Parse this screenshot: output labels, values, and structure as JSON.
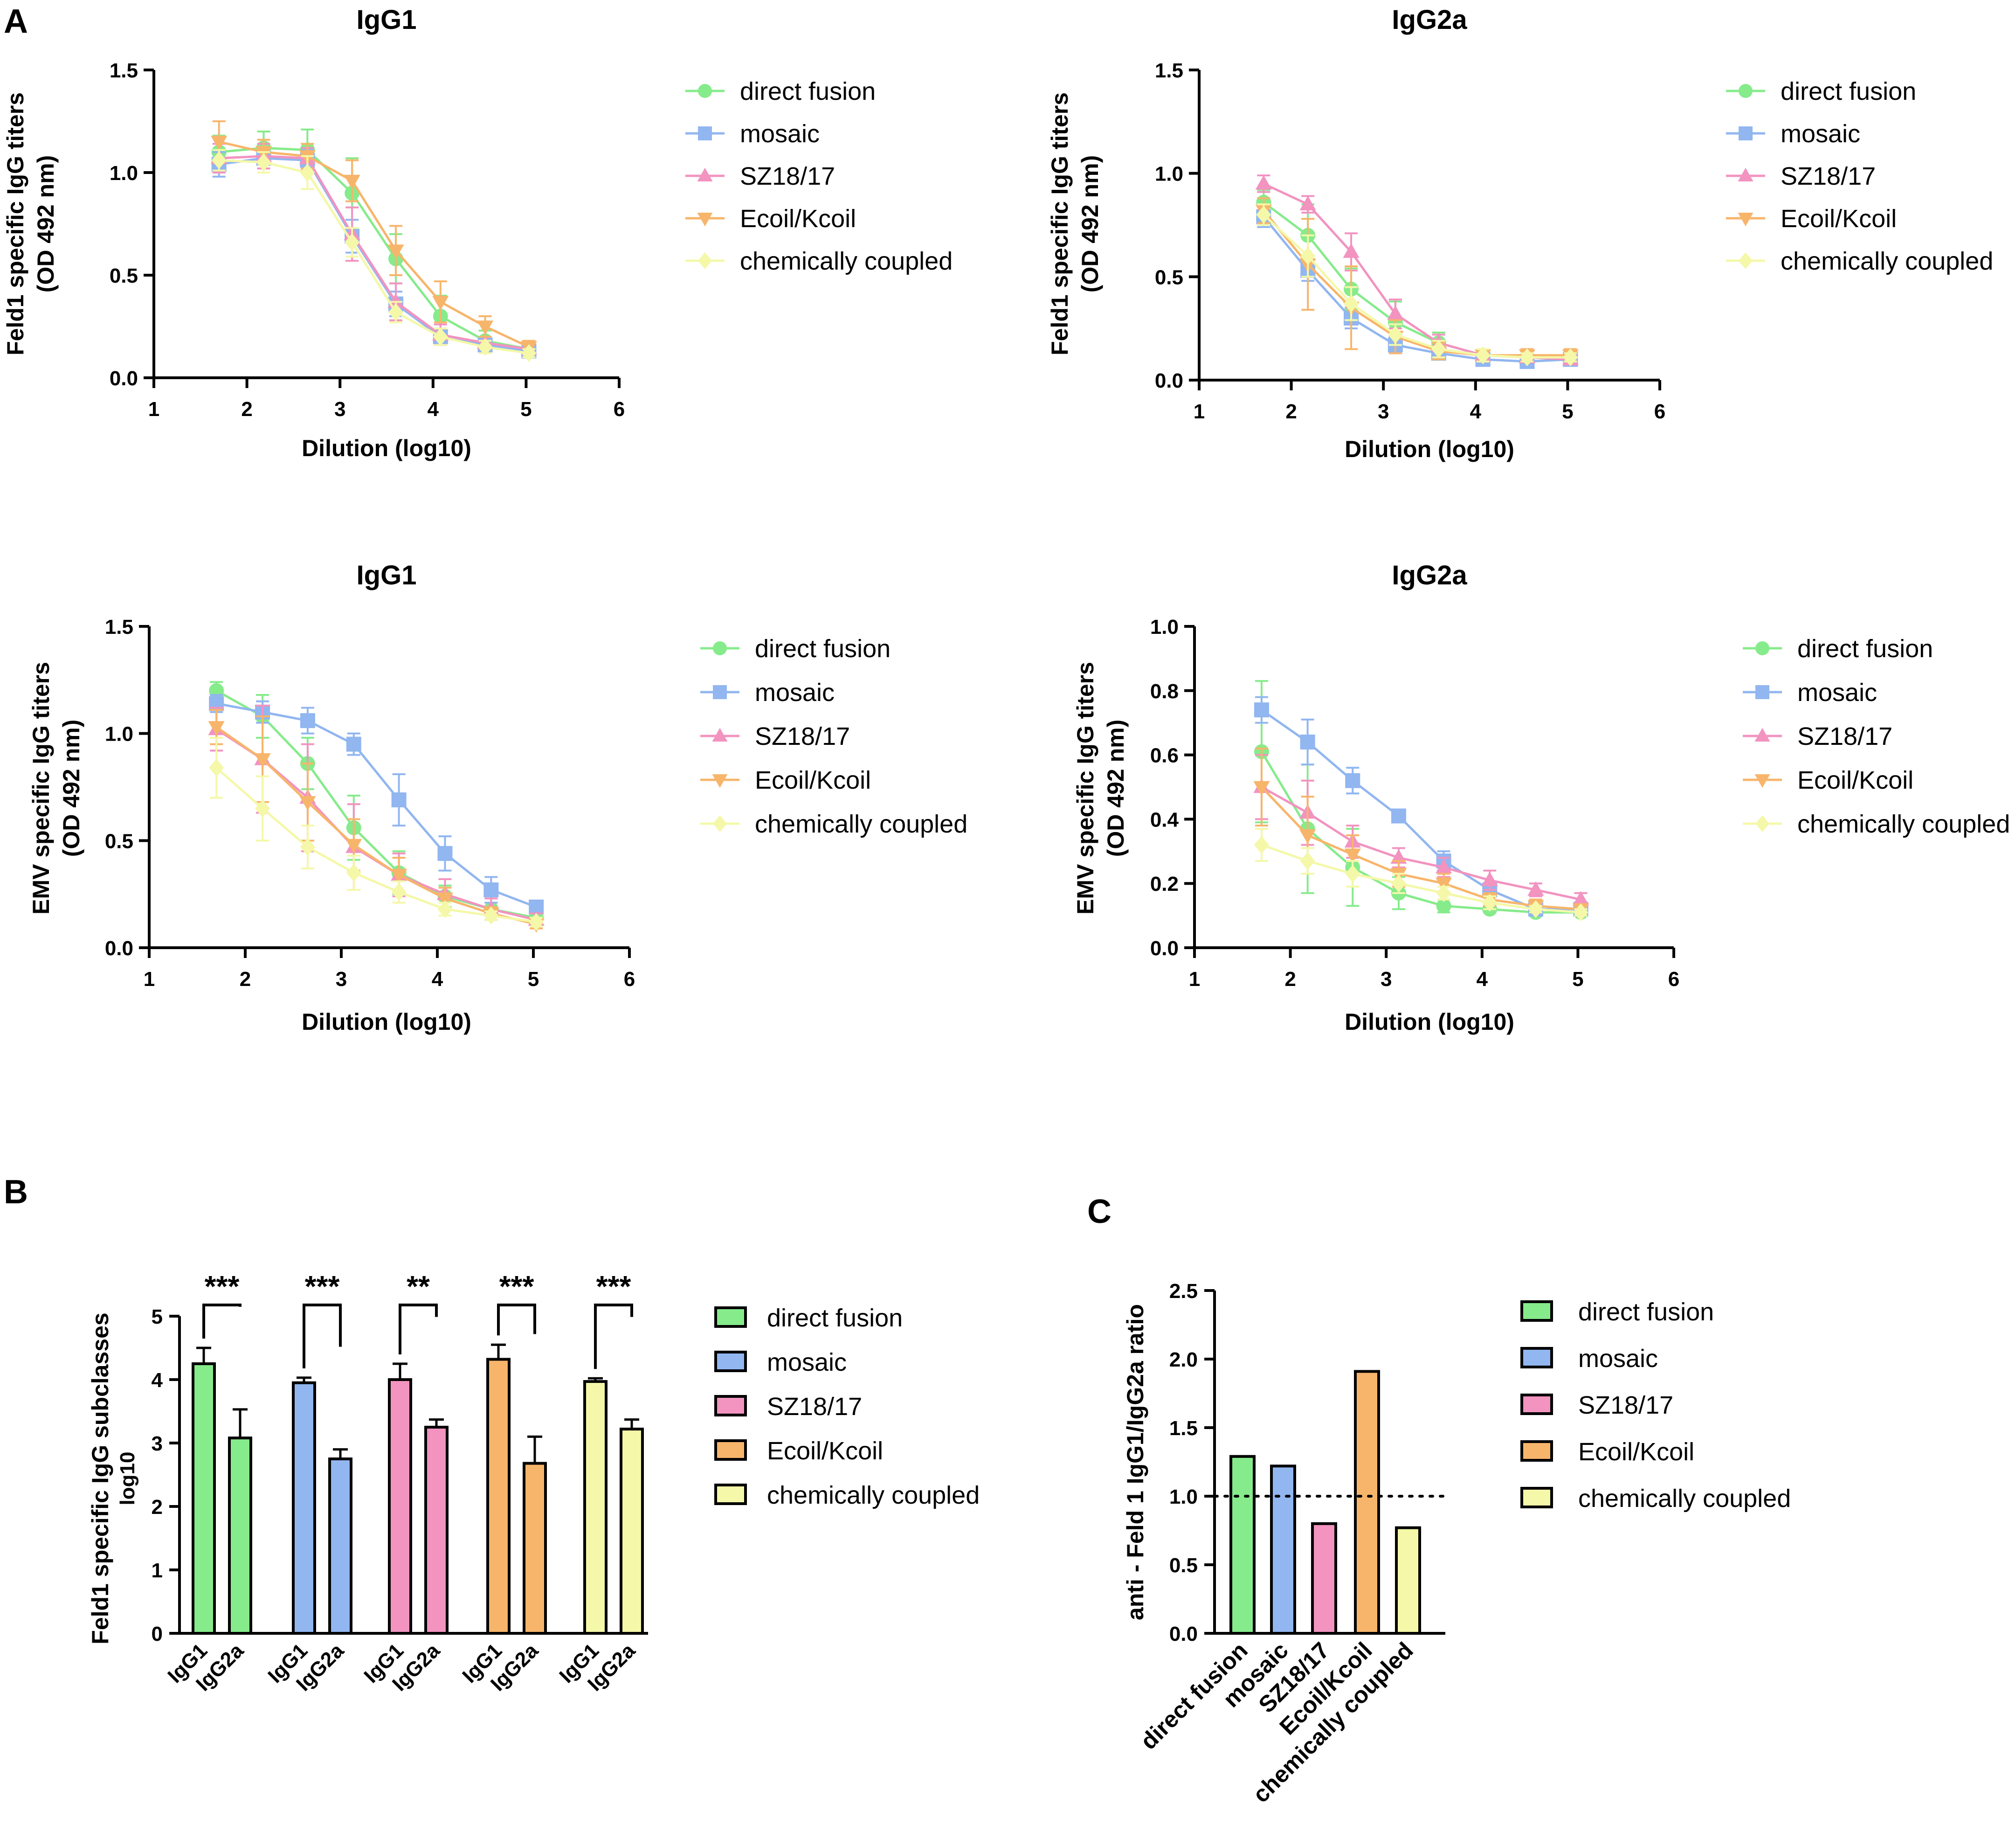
{
  "figure": {
    "panel_labels": {
      "a": "A",
      "b": "B",
      "c": "C"
    },
    "series_colors": {
      "direct fusion": "#86EB8B",
      "mosaic": "#91B6F0",
      "SZ18/17": "#F293C0",
      "Ecoil/Kcoil": "#F7B56B",
      "chemically coupled": "#F4F8A8"
    }
  },
  "chart_data": [
    {
      "id": "A1",
      "type": "line",
      "title": "IgG1",
      "xlabel": "Dilution (log10)",
      "ylabel": [
        "Feld1 specific IgG titers",
        "(OD 492 nm)"
      ],
      "xlim": [
        1,
        6
      ],
      "ylim": [
        0,
        1.5
      ],
      "xticks": [
        "1",
        "2",
        "3",
        "4",
        "5",
        "6"
      ],
      "yticks": [
        "0.0",
        "0.5",
        "1.0",
        "1.5"
      ],
      "x": [
        1.7,
        2.18,
        2.65,
        3.13,
        3.6,
        4.08,
        4.56,
        5.03
      ],
      "series": [
        {
          "name": "direct fusion",
          "marker": "circle",
          "values": [
            1.1,
            1.12,
            1.11,
            0.9,
            0.58,
            0.3,
            0.18,
            0.14
          ],
          "err": [
            0.08,
            0.08,
            0.1,
            0.17,
            0.12,
            0.1,
            0.05,
            0.03
          ]
        },
        {
          "name": "mosaic",
          "marker": "square",
          "values": [
            1.04,
            1.07,
            1.06,
            0.69,
            0.36,
            0.2,
            0.16,
            0.13
          ],
          "err": [
            0.06,
            0.05,
            0.05,
            0.08,
            0.06,
            0.04,
            0.03,
            0.02
          ]
        },
        {
          "name": "SZ18/17",
          "marker": "triangle-up",
          "values": [
            1.07,
            1.08,
            1.07,
            0.7,
            0.37,
            0.21,
            0.17,
            0.14
          ],
          "err": [
            0.07,
            0.06,
            0.05,
            0.13,
            0.09,
            0.05,
            0.03,
            0.02
          ]
        },
        {
          "name": "Ecoil/Kcoil",
          "marker": "triangle-down",
          "values": [
            1.15,
            1.1,
            1.08,
            0.96,
            0.62,
            0.37,
            0.25,
            0.15
          ],
          "err": [
            0.1,
            0.06,
            0.06,
            0.1,
            0.12,
            0.1,
            0.05,
            0.03
          ]
        },
        {
          "name": "chemically coupled",
          "marker": "diamond",
          "values": [
            1.06,
            1.05,
            1.0,
            0.66,
            0.32,
            0.2,
            0.15,
            0.12
          ],
          "err": [
            0.05,
            0.05,
            0.08,
            0.07,
            0.05,
            0.04,
            0.03,
            0.02
          ]
        }
      ]
    },
    {
      "id": "A2",
      "type": "line",
      "title": "IgG2a",
      "xlabel": "Dilution (log10)",
      "ylabel": [
        "Feld1 specific IgG titers",
        "(OD 492 nm)"
      ],
      "xlim": [
        1,
        6
      ],
      "ylim": [
        0,
        1.5
      ],
      "xticks": [
        "1",
        "2",
        "3",
        "4",
        "5",
        "6"
      ],
      "yticks": [
        "0.0",
        "0.5",
        "1.0",
        "1.5"
      ],
      "x": [
        1.7,
        2.18,
        2.65,
        3.13,
        3.6,
        4.08,
        4.56,
        5.03
      ],
      "series": [
        {
          "name": "direct fusion",
          "marker": "circle",
          "values": [
            0.86,
            0.7,
            0.44,
            0.28,
            0.18,
            0.12,
            0.11,
            0.1
          ],
          "err": [
            0.06,
            0.15,
            0.1,
            0.1,
            0.05,
            0.03,
            0.02,
            0.02
          ]
        },
        {
          "name": "mosaic",
          "marker": "square",
          "values": [
            0.79,
            0.53,
            0.3,
            0.17,
            0.13,
            0.1,
            0.09,
            0.1
          ],
          "err": [
            0.05,
            0.05,
            0.05,
            0.04,
            0.03,
            0.02,
            0.02,
            0.02
          ]
        },
        {
          "name": "SZ18/17",
          "marker": "triangle-up",
          "values": [
            0.95,
            0.85,
            0.62,
            0.32,
            0.18,
            0.12,
            0.11,
            0.1
          ],
          "err": [
            0.04,
            0.04,
            0.09,
            0.07,
            0.04,
            0.03,
            0.02,
            0.02
          ]
        },
        {
          "name": "Ecoil/Kcoil",
          "marker": "triangle-down",
          "values": [
            0.82,
            0.56,
            0.35,
            0.21,
            0.14,
            0.12,
            0.12,
            0.12
          ],
          "err": [
            0.06,
            0.22,
            0.2,
            0.08,
            0.04,
            0.03,
            0.03,
            0.03
          ]
        },
        {
          "name": "chemically coupled",
          "marker": "diamond",
          "values": [
            0.8,
            0.6,
            0.37,
            0.22,
            0.15,
            0.12,
            0.11,
            0.11
          ],
          "err": [
            0.05,
            0.1,
            0.08,
            0.05,
            0.04,
            0.03,
            0.02,
            0.02
          ]
        }
      ]
    },
    {
      "id": "A3",
      "type": "line",
      "title": "IgG1",
      "xlabel": "Dilution (log10)",
      "ylabel": [
        "EMV specific IgG titers",
        "(OD 492 nm)"
      ],
      "xlim": [
        1,
        6
      ],
      "ylim": [
        0,
        1.5
      ],
      "xticks": [
        "1",
        "2",
        "3",
        "4",
        "5",
        "6"
      ],
      "yticks": [
        "0.0",
        "0.5",
        "1.0",
        "1.5"
      ],
      "x": [
        1.7,
        2.18,
        2.65,
        3.13,
        3.6,
        4.08,
        4.56,
        5.03
      ],
      "series": [
        {
          "name": "direct fusion",
          "marker": "circle",
          "values": [
            1.2,
            1.08,
            0.86,
            0.56,
            0.35,
            0.24,
            0.18,
            0.14
          ],
          "err": [
            0.04,
            0.1,
            0.12,
            0.15,
            0.1,
            0.05,
            0.03,
            0.02
          ]
        },
        {
          "name": "mosaic",
          "marker": "square",
          "values": [
            1.14,
            1.1,
            1.06,
            0.95,
            0.69,
            0.44,
            0.27,
            0.19
          ],
          "err": [
            0.04,
            0.05,
            0.06,
            0.05,
            0.12,
            0.08,
            0.06,
            0.03
          ]
        },
        {
          "name": "SZ18/17",
          "marker": "triangle-up",
          "values": [
            1.02,
            0.88,
            0.7,
            0.47,
            0.34,
            0.25,
            0.18,
            0.13
          ],
          "err": [
            0.1,
            0.25,
            0.25,
            0.2,
            0.1,
            0.07,
            0.05,
            0.03
          ]
        },
        {
          "name": "Ecoil/Kcoil",
          "marker": "triangle-down",
          "values": [
            1.03,
            0.88,
            0.68,
            0.48,
            0.34,
            0.23,
            0.16,
            0.11
          ],
          "err": [
            0.08,
            0.2,
            0.18,
            0.12,
            0.08,
            0.05,
            0.03,
            0.02
          ]
        },
        {
          "name": "chemically coupled",
          "marker": "diamond",
          "values": [
            0.84,
            0.65,
            0.47,
            0.35,
            0.26,
            0.18,
            0.15,
            0.12
          ],
          "err": [
            0.14,
            0.15,
            0.1,
            0.08,
            0.05,
            0.03,
            0.02,
            0.02
          ]
        }
      ]
    },
    {
      "id": "A4",
      "type": "line",
      "title": "IgG2a",
      "xlabel": "Dilution (log10)",
      "ylabel": [
        "EMV specific IgG titers",
        "(OD 492 nm)"
      ],
      "xlim": [
        1,
        6
      ],
      "ylim": [
        0,
        1.0
      ],
      "xticks": [
        "1",
        "2",
        "3",
        "4",
        "5",
        "6"
      ],
      "yticks": [
        "0.0",
        "0.2",
        "0.4",
        "0.6",
        "0.8",
        "1.0"
      ],
      "x": [
        1.7,
        2.18,
        2.65,
        3.13,
        3.6,
        4.08,
        4.56,
        5.03
      ],
      "series": [
        {
          "name": "direct fusion",
          "marker": "circle",
          "values": [
            0.61,
            0.37,
            0.25,
            0.17,
            0.13,
            0.12,
            0.11,
            0.11
          ],
          "err": [
            0.22,
            0.2,
            0.12,
            0.05,
            0.02,
            0.01,
            0.01,
            0.01
          ]
        },
        {
          "name": "mosaic",
          "marker": "square",
          "values": [
            0.74,
            0.64,
            0.52,
            0.41,
            0.27,
            0.18,
            0.12,
            0.12
          ],
          "err": [
            0.04,
            0.07,
            0.04,
            0.02,
            0.03,
            0.02,
            0.01,
            0.01
          ]
        },
        {
          "name": "SZ18/17",
          "marker": "triangle-up",
          "values": [
            0.5,
            0.42,
            0.33,
            0.28,
            0.25,
            0.21,
            0.18,
            0.15
          ],
          "err": [
            0.1,
            0.1,
            0.05,
            0.03,
            0.03,
            0.03,
            0.02,
            0.02
          ]
        },
        {
          "name": "Ecoil/Kcoil",
          "marker": "triangle-down",
          "values": [
            0.5,
            0.35,
            0.29,
            0.23,
            0.2,
            0.15,
            0.13,
            0.12
          ],
          "err": [
            0.12,
            0.12,
            0.06,
            0.04,
            0.03,
            0.02,
            0.02,
            0.01
          ]
        },
        {
          "name": "chemically coupled",
          "marker": "diamond",
          "values": [
            0.32,
            0.27,
            0.23,
            0.2,
            0.17,
            0.14,
            0.12,
            0.11
          ],
          "err": [
            0.05,
            0.04,
            0.04,
            0.03,
            0.02,
            0.02,
            0.01,
            0.01
          ]
        }
      ]
    },
    {
      "id": "B",
      "type": "bar",
      "ylabel": "Feld1 specific IgG subclasses",
      "ylabel_sub": "log10",
      "ylim": [
        0,
        5
      ],
      "yticks": [
        "0",
        "1",
        "2",
        "3",
        "4",
        "5"
      ],
      "categories": [
        "IgG1",
        "IgG2a"
      ],
      "groups": [
        {
          "name": "direct fusion",
          "values": [
            4.25,
            3.08
          ],
          "err": [
            0.25,
            0.45
          ],
          "significance": "***"
        },
        {
          "name": "mosaic",
          "values": [
            3.95,
            2.75
          ],
          "err": [
            0.08,
            0.15
          ],
          "significance": "***"
        },
        {
          "name": "SZ18/17",
          "values": [
            4.0,
            3.25
          ],
          "err": [
            0.25,
            0.12
          ],
          "significance": "**"
        },
        {
          "name": "Ecoil/Kcoil",
          "values": [
            4.32,
            2.68
          ],
          "err": [
            0.23,
            0.42
          ],
          "significance": "***"
        },
        {
          "name": "chemically coupled",
          "values": [
            3.97,
            3.22
          ],
          "err": [
            0.05,
            0.15
          ],
          "significance": "***"
        }
      ]
    },
    {
      "id": "C",
      "type": "bar",
      "ylabel": "anti - Feld 1 IgG1/IgG2a ratio",
      "ylim": [
        0,
        2.5
      ],
      "yticks": [
        "0.0",
        "0.5",
        "1.0",
        "1.5",
        "2.0",
        "2.5"
      ],
      "reference_line": 1.0,
      "categories": [
        "direct fusion",
        "mosaic",
        "SZ18/17",
        "Ecoil/Kcoil",
        "chemically coupled"
      ],
      "values": [
        1.29,
        1.22,
        0.8,
        1.91,
        0.77
      ]
    }
  ]
}
